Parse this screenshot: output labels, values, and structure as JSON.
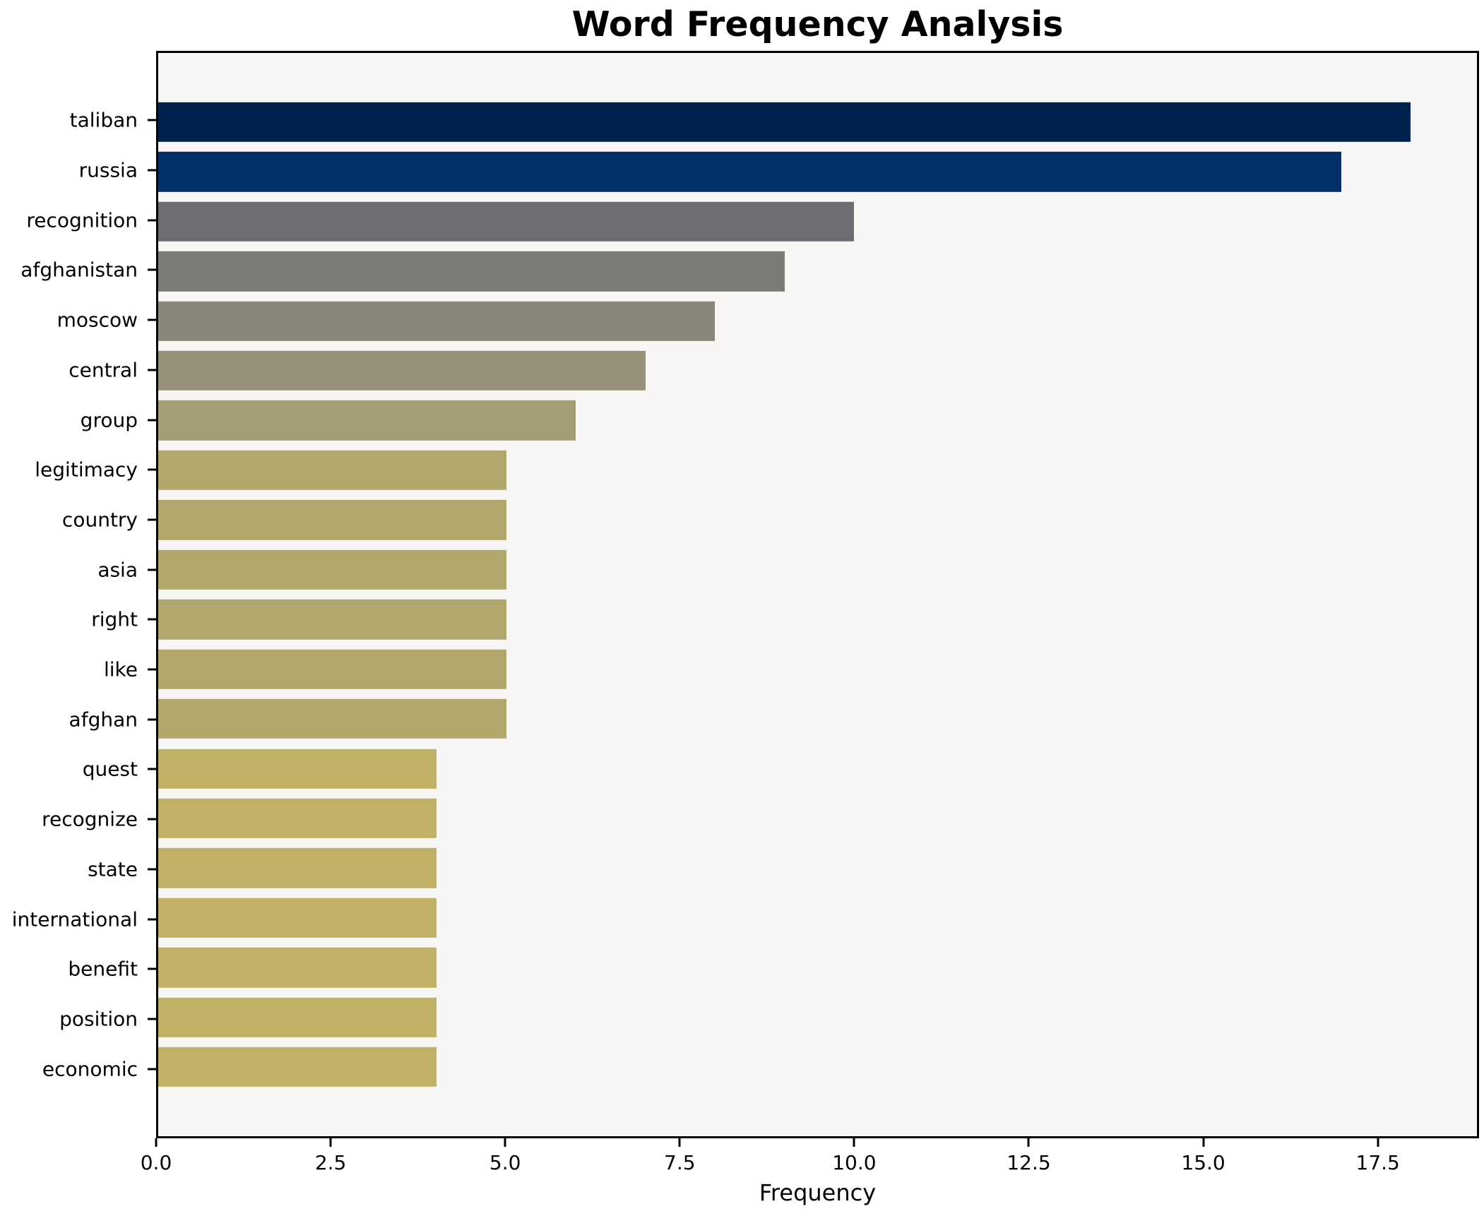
{
  "chart_data": {
    "type": "bar",
    "orientation": "horizontal",
    "title": "Word Frequency Analysis",
    "xlabel": "Frequency",
    "ylabel": "",
    "categories": [
      "taliban",
      "russia",
      "recognition",
      "afghanistan",
      "moscow",
      "central",
      "group",
      "legitimacy",
      "country",
      "asia",
      "right",
      "like",
      "afghan",
      "quest",
      "recognize",
      "state",
      "international",
      "benefit",
      "position",
      "economic"
    ],
    "values": [
      18,
      17,
      10,
      9,
      8,
      7,
      6,
      5,
      5,
      5,
      5,
      5,
      5,
      4,
      4,
      4,
      4,
      4,
      4,
      4
    ],
    "bar_colors": [
      "#00224e",
      "#04306a",
      "#6d6e71",
      "#7c7a76",
      "#8a877a",
      "#979179",
      "#a59d74",
      "#b1a76c",
      "#b1a76c",
      "#b1a76c",
      "#b1a76c",
      "#b1a76c",
      "#b1a76c",
      "#c1b164",
      "#c1b164",
      "#c1b164",
      "#c1b164",
      "#c1b164",
      "#c1b164",
      "#c1b164"
    ],
    "xlim": [
      0,
      18.95
    ],
    "xticks": [
      0.0,
      2.5,
      5.0,
      7.5,
      10.0,
      12.5,
      15.0,
      17.5
    ],
    "xtick_labels": [
      "0.0",
      "2.5",
      "5.0",
      "7.5",
      "10.0",
      "12.5",
      "15.0",
      "17.5"
    ],
    "grid": false,
    "legend": "none",
    "plot_background": "#f7f6f4",
    "figure_background": "#ffffff",
    "spine_color": "#000000",
    "text_color": "#000000"
  }
}
